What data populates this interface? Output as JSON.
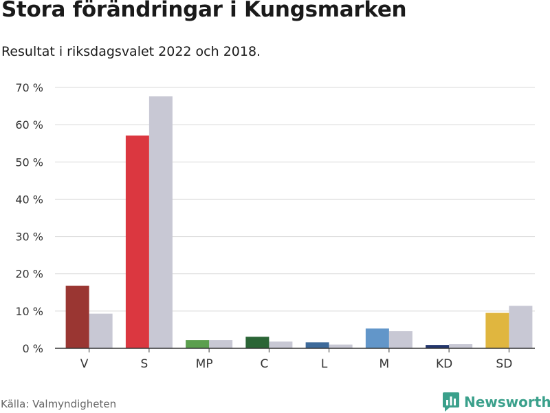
{
  "header": {
    "title": "Stora förändringar i Kungsmarken",
    "subtitle": "Resultat i riksdagsvalet 2022 och 2018."
  },
  "footer": {
    "source": "Källa: Valmyndigheten",
    "brand": "Newsworthy"
  },
  "colors": {
    "brand": "#3aa08b",
    "gridline": "#d9d9d9",
    "axis": "#333333"
  },
  "chart_data": {
    "type": "bar",
    "categories": [
      "V",
      "S",
      "MP",
      "C",
      "L",
      "M",
      "KD",
      "SD"
    ],
    "series": [
      {
        "values": [
          16.8,
          57.1,
          2.2,
          3.1,
          1.6,
          5.3,
          0.9,
          9.5
        ],
        "colors": [
          "#9a3632",
          "#db3740",
          "#5b9f4e",
          "#2b6536",
          "#3d6a9a",
          "#6296c9",
          "#23366d",
          "#e0b63f"
        ]
      },
      {
        "values": [
          9.3,
          67.6,
          2.2,
          1.8,
          1.0,
          4.6,
          1.1,
          11.4
        ],
        "color": "#c8c8d4"
      }
    ],
    "ylim": [
      0,
      70
    ],
    "yticks": [
      0,
      10,
      20,
      30,
      40,
      50,
      60,
      70
    ],
    "ytick_labels": [
      "0 %",
      "10 %",
      "20 %",
      "30 %",
      "40 %",
      "50 %",
      "60 %",
      "70 %"
    ],
    "grid": true,
    "legend": "none"
  }
}
